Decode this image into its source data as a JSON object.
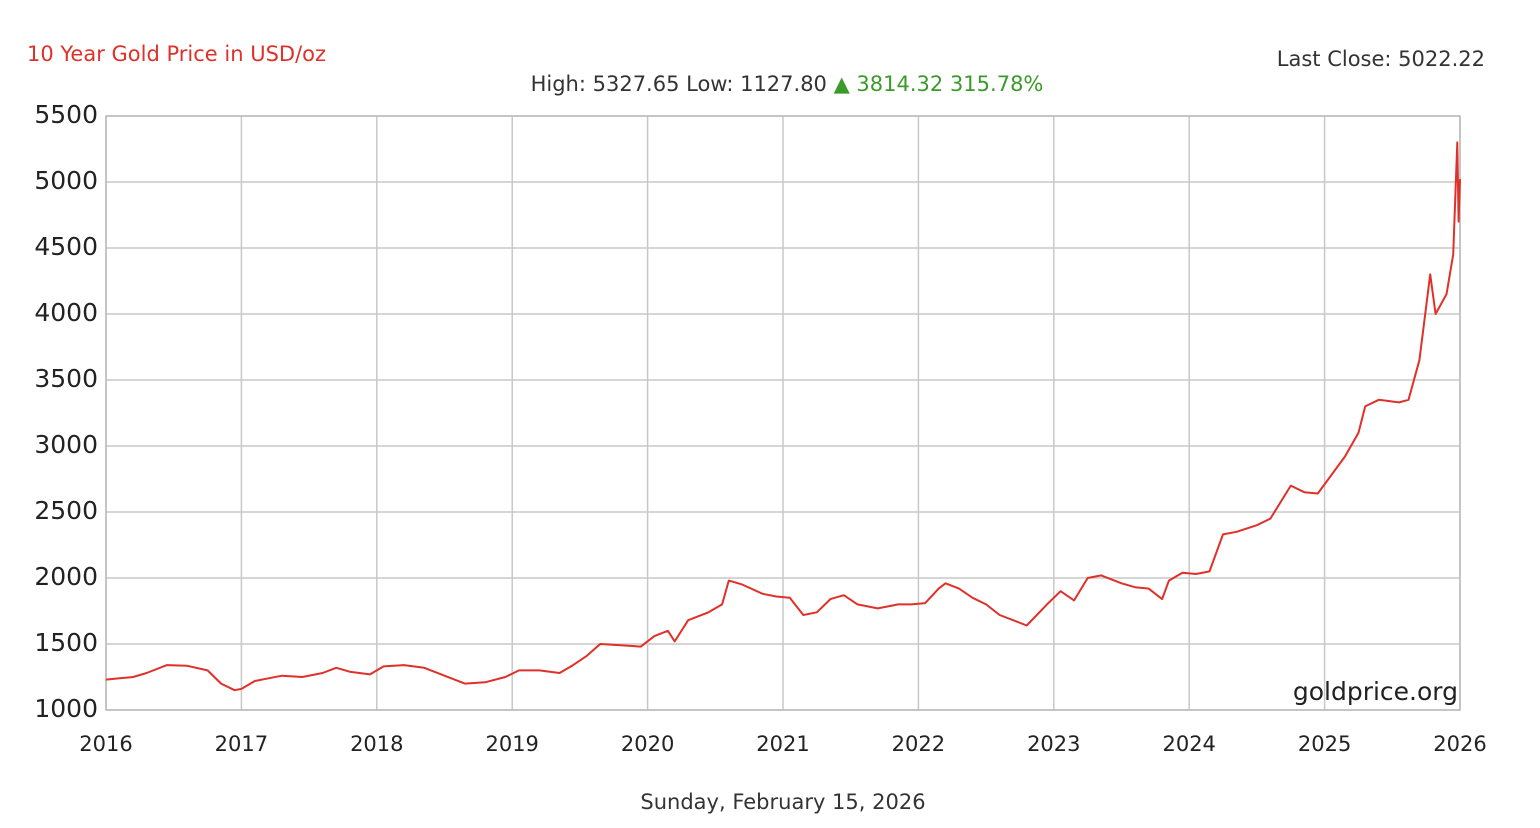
{
  "chart_data": {
    "type": "line",
    "title": "10 Year Gold Price in USD/oz",
    "last_close": "Last Close: 5022.22",
    "stats": "High: 5327.65 Low: 1127.80",
    "change": "▲ 3814.32 315.78%",
    "watermark": "goldprice.org",
    "xlabel": "Sunday, February 15, 2026",
    "color": "#e0302a",
    "grid": true,
    "xlim": [
      2016,
      2026
    ],
    "ylim": [
      1000,
      5500
    ],
    "xticks": [
      2016,
      2017,
      2018,
      2019,
      2020,
      2021,
      2022,
      2023,
      2024,
      2025,
      2026
    ],
    "yticks": [
      1000,
      1500,
      2000,
      2500,
      3000,
      3500,
      4000,
      4500,
      5000,
      5500
    ],
    "x": [
      2016.0,
      2016.1,
      2016.2,
      2016.3,
      2016.45,
      2016.6,
      2016.75,
      2016.85,
      2016.95,
      2017.0,
      2017.1,
      2017.2,
      2017.3,
      2017.45,
      2017.6,
      2017.7,
      2017.8,
      2017.95,
      2018.05,
      2018.2,
      2018.35,
      2018.5,
      2018.65,
      2018.8,
      2018.95,
      2019.05,
      2019.2,
      2019.35,
      2019.45,
      2019.55,
      2019.65,
      2019.8,
      2019.95,
      2020.05,
      2020.15,
      2020.2,
      2020.3,
      2020.45,
      2020.55,
      2020.6,
      2020.7,
      2020.85,
      2020.95,
      2021.05,
      2021.15,
      2021.25,
      2021.35,
      2021.45,
      2021.55,
      2021.7,
      2021.85,
      2021.95,
      2022.05,
      2022.15,
      2022.2,
      2022.3,
      2022.4,
      2022.5,
      2022.6,
      2022.7,
      2022.8,
      2022.95,
      2023.05,
      2023.15,
      2023.25,
      2023.35,
      2023.5,
      2023.6,
      2023.7,
      2023.8,
      2023.85,
      2023.95,
      2024.05,
      2024.15,
      2024.25,
      2024.35,
      2024.5,
      2024.6,
      2024.75,
      2024.85,
      2024.95,
      2025.05,
      2025.15,
      2025.25,
      2025.3,
      2025.4,
      2025.55,
      2025.62,
      2025.7,
      2025.78,
      2025.82,
      2025.9,
      2025.95,
      2025.98,
      2025.99,
      2026.0
    ],
    "values": [
      1230,
      1240,
      1250,
      1280,
      1340,
      1335,
      1300,
      1200,
      1150,
      1160,
      1220,
      1240,
      1260,
      1250,
      1280,
      1320,
      1290,
      1270,
      1330,
      1340,
      1320,
      1260,
      1200,
      1210,
      1250,
      1300,
      1300,
      1280,
      1340,
      1410,
      1500,
      1490,
      1480,
      1560,
      1600,
      1520,
      1680,
      1740,
      1800,
      1980,
      1950,
      1880,
      1860,
      1850,
      1720,
      1740,
      1840,
      1870,
      1800,
      1770,
      1800,
      1800,
      1810,
      1920,
      1960,
      1920,
      1850,
      1800,
      1720,
      1680,
      1640,
      1800,
      1900,
      1830,
      2000,
      2020,
      1960,
      1930,
      1920,
      1840,
      1980,
      2040,
      2030,
      2050,
      2330,
      2350,
      2400,
      2450,
      2700,
      2650,
      2640,
      2780,
      2920,
      3100,
      3300,
      3350,
      3330,
      3350,
      3650,
      4300,
      4000,
      4150,
      4450,
      5300,
      4700,
      5022
    ]
  }
}
